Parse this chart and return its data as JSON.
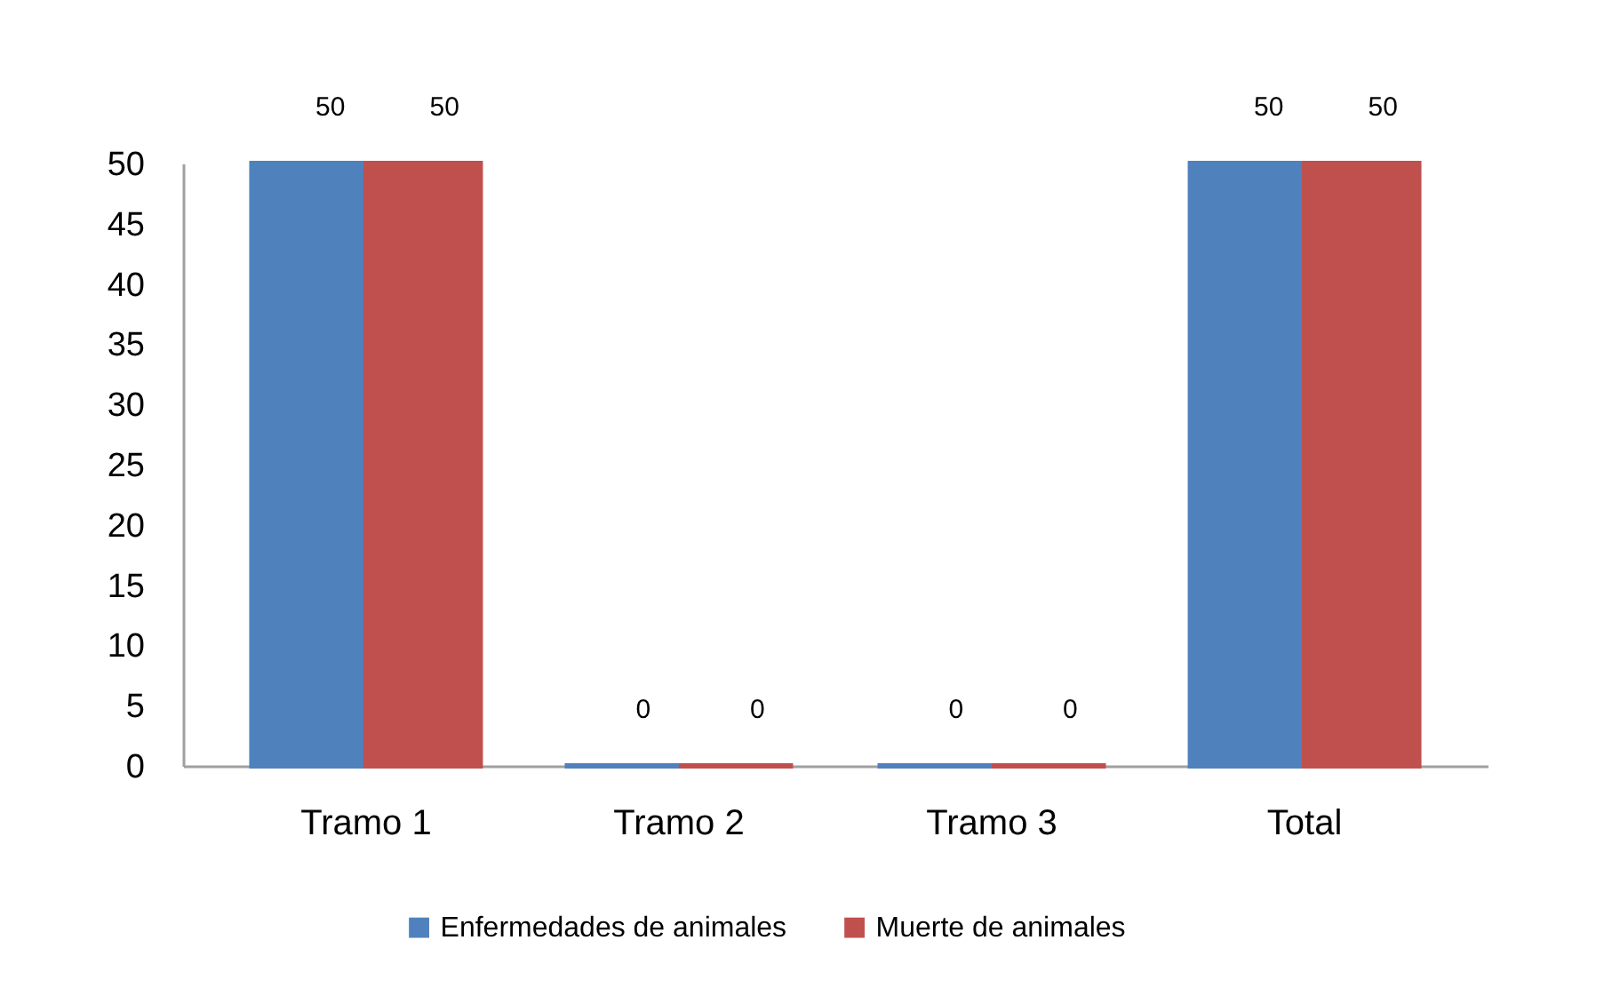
{
  "chart_data": {
    "type": "bar",
    "categories": [
      "Tramo 1",
      "Tramo 2",
      "Tramo 3",
      "Total"
    ],
    "series": [
      {
        "name": "Enfermedades de animales",
        "color": "#4f81bd",
        "values": [
          50,
          0,
          0,
          50
        ]
      },
      {
        "name": "Muerte de animales",
        "color": "#c0504d",
        "values": [
          50,
          0,
          0,
          50
        ]
      }
    ],
    "ylim": [
      0,
      50
    ],
    "yticks": [
      0,
      5,
      10,
      15,
      20,
      25,
      30,
      35,
      40,
      45,
      50
    ],
    "data_labels": true,
    "legend": "bottom"
  }
}
